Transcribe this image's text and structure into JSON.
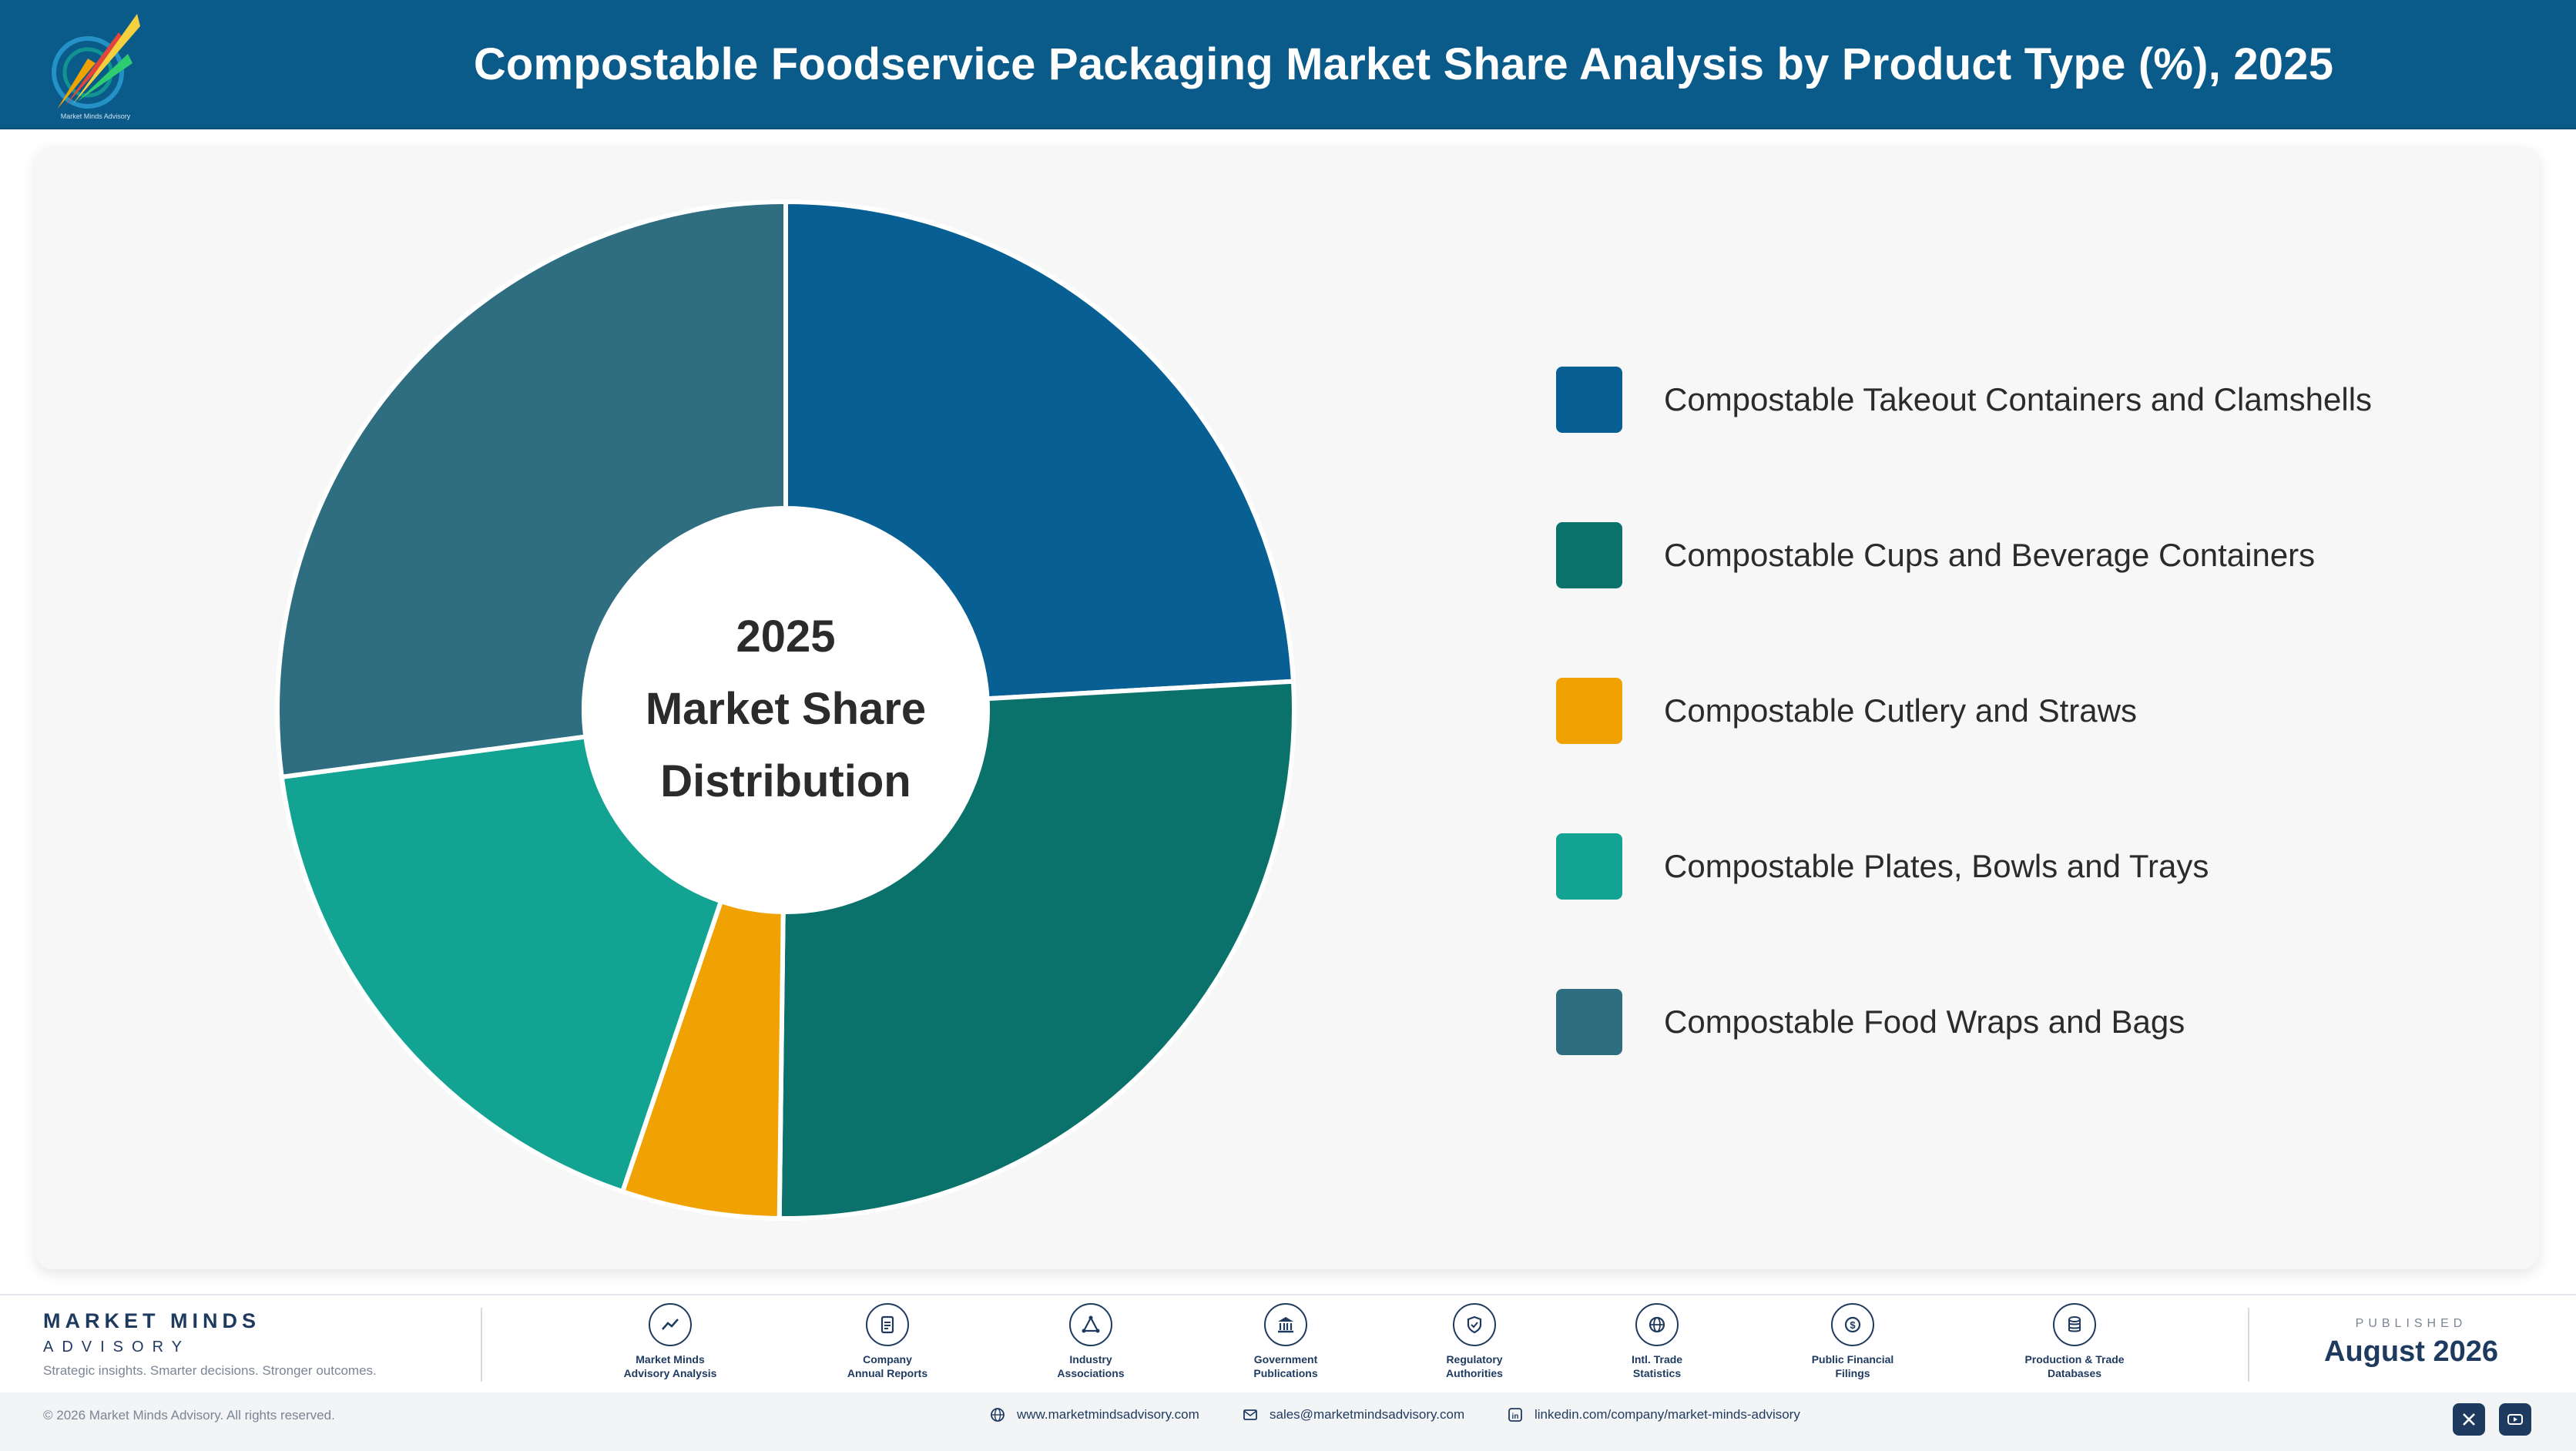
{
  "header": {
    "title": "Compostable Foodservice Packaging Market Share Analysis by Product Type (%), 2025",
    "logo_tagline": "Market Minds Advisory"
  },
  "center_label": {
    "line1": "2025",
    "line2": "Market Share",
    "line3": "Distribution"
  },
  "chart_data": {
    "type": "pie",
    "title": "Compostable Foodservice Packaging Market Share Analysis by Product Type (%), 2025",
    "categories": [
      "Compostable Takeout Containers and Clamshells",
      "Compostable Cups and Beverage Containers",
      "Compostable Cutlery and Straws",
      "Compostable Plates, Bowls and Trays",
      "Compostable Food Wraps and Bags"
    ],
    "values": [
      24.1,
      26.1,
      5.0,
      17.7,
      27.1
    ],
    "colors": [
      "#075f94",
      "#0b726b",
      "#f0a202",
      "#13a392",
      "#2f6d80"
    ],
    "donut": true,
    "start_angle": "12 o'clock",
    "direction": "clockwise",
    "legend_placement": "right",
    "data_labels": false
  },
  "footer": {
    "brand": "MARKET MINDS",
    "brand_sub": "ADVISORY",
    "tagline": "Strategic insights. Smarter decisions. Stronger outcomes.",
    "sources": [
      {
        "line1": "Market Minds",
        "line2": "Advisory Analysis",
        "icon": "trend-icon"
      },
      {
        "line1": "Company",
        "line2": "Annual Reports",
        "icon": "document-icon"
      },
      {
        "line1": "Industry",
        "line2": "Associations",
        "icon": "network-icon"
      },
      {
        "line1": "Government",
        "line2": "Publications",
        "icon": "bank-icon"
      },
      {
        "line1": "Regulatory",
        "line2": "Authorities",
        "icon": "shield-icon"
      },
      {
        "line1": "Intl. Trade",
        "line2": "Statistics",
        "icon": "globe-icon"
      },
      {
        "line1": "Public Financial",
        "line2": "Filings",
        "icon": "dollar-icon"
      },
      {
        "line1": "Production & Trade",
        "line2": "Databases",
        "icon": "database-icon"
      }
    ],
    "published_label": "PUBLISHED",
    "published_date": "August 2026",
    "copyright": "© 2026 Market Minds Advisory. All rights reserved.",
    "website": "www.marketmindsadvisory.com",
    "email": "sales@marketmindsadvisory.com",
    "linkedin": "linkedin.com/company/market-minds-advisory"
  }
}
